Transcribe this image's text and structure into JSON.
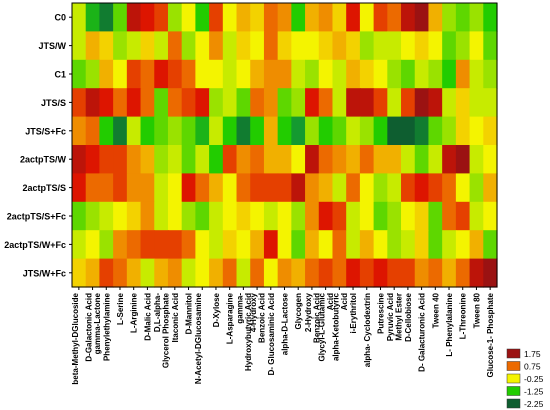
{
  "chart_data": {
    "type": "heatmap",
    "rows": [
      "C0",
      "JTS/W",
      "C1",
      "JTS/S",
      "JTS/S+Fc",
      "2actpTS/W",
      "2actpTS/S",
      "2actpTS/S+Fc",
      "2actpTS/W+Fc",
      "JTS/W+Fc"
    ],
    "columns": [
      "beta-Methyl-DGlucoside",
      "D-Galactonic Acid gamma-Lactone",
      "Phenylethylamine",
      "L-Serine",
      "L-Arginine",
      "D-Malic Acid",
      "D,L-alpha- Glycerol Phosphate",
      "Itaconic Acid",
      "D-Mannitol",
      "N-Acetyl-DGlucosamine",
      "D-Xylose",
      "L-Asparagine",
      "gamma- Hydroxybutyric Acid",
      "4-Hydroxy Benzoic Acid",
      "D- Glucosaminic Acid",
      "alpha-D-Lactose",
      "Glycogen",
      "2-Hydroxy Benzoic Acid",
      "Glycyl-L-Glutamic Acid",
      "alpha-Ketobutyric Acid",
      "i-Erythritol",
      "alpha- Cyclodextrin",
      "Putrescine",
      "Pyruvic Acid Methyl Ester",
      "D-Cellobiose",
      "D- Galacturonic Acid",
      "Tween 40",
      "L- Phenylalanine",
      "L-Threonine",
      "Tween 80",
      "Glucose-1- Phosphate"
    ],
    "values": [
      [
        -0.5,
        -1.5,
        -2.0,
        -1.0,
        1.5,
        1.25,
        1.0,
        -0.75,
        -0.25,
        -1.25,
        1.0,
        -0.25,
        0.25,
        0.0,
        0.75,
        0.5,
        -1.25,
        0.25,
        0.5,
        0.0,
        1.25,
        -0.25,
        1.0,
        0.75,
        1.5,
        1.75,
        0.25,
        -0.75,
        -1.0,
        -0.75,
        -1.25
      ],
      [
        -0.5,
        0.25,
        0.0,
        -0.75,
        -0.5,
        0.0,
        -0.5,
        0.75,
        -0.75,
        -0.25,
        0.5,
        -0.5,
        0.0,
        -0.25,
        0.75,
        0.0,
        -0.25,
        -0.25,
        0.0,
        0.25,
        0.0,
        -0.75,
        -0.5,
        -0.5,
        -0.25,
        0.0,
        -0.25,
        -1.0,
        -0.75,
        -0.25,
        -1.0
      ],
      [
        -1.0,
        -0.75,
        0.25,
        -0.25,
        1.0,
        0.75,
        1.25,
        1.0,
        0.75,
        -0.25,
        -0.25,
        -0.5,
        -0.25,
        0.25,
        0.5,
        0.5,
        -0.5,
        -0.75,
        -0.25,
        -0.5,
        0.25,
        0.0,
        -0.25,
        -0.75,
        -1.0,
        -0.5,
        -0.75,
        -1.25,
        0.5,
        -0.5,
        -0.75
      ],
      [
        1.0,
        1.5,
        1.25,
        0.75,
        1.25,
        0.75,
        -1.0,
        0.75,
        1.0,
        1.25,
        -0.75,
        -0.5,
        -1.0,
        0.75,
        0.5,
        -1.0,
        -0.75,
        1.25,
        0.75,
        -0.5,
        1.5,
        1.5,
        1.0,
        -0.5,
        1.0,
        1.75,
        1.5,
        -0.5,
        0.0,
        -0.5,
        -0.5
      ],
      [
        0.5,
        0.75,
        -1.25,
        -2.0,
        -0.5,
        -1.25,
        -1.0,
        -0.75,
        -1.0,
        -1.5,
        -0.5,
        -1.25,
        -2.0,
        -1.25,
        0.25,
        -1.25,
        -1.75,
        -0.75,
        -1.25,
        -1.0,
        -0.5,
        -0.75,
        -1.25,
        -2.25,
        -2.25,
        -2.0,
        -1.0,
        -0.75,
        0.0,
        -0.25,
        0.0
      ],
      [
        1.5,
        1.25,
        1.0,
        1.0,
        0.5,
        0.25,
        -0.75,
        -0.5,
        -1.0,
        -0.5,
        -1.25,
        1.0,
        0.5,
        0.75,
        0.25,
        0.25,
        -0.25,
        1.5,
        0.75,
        0.5,
        0.25,
        0.75,
        0.25,
        0.25,
        -0.5,
        -1.0,
        -0.5,
        1.5,
        1.75,
        -0.5,
        -0.25
      ],
      [
        1.25,
        0.75,
        0.75,
        1.0,
        0.5,
        0.5,
        -0.5,
        -0.25,
        1.25,
        0.75,
        0.25,
        -0.25,
        0.75,
        1.0,
        1.0,
        1.0,
        1.5,
        0.5,
        0.25,
        -0.5,
        0.75,
        -0.25,
        -0.75,
        -0.5,
        1.0,
        1.25,
        1.0,
        0.75,
        -0.25,
        -0.75,
        0.25
      ],
      [
        -1.0,
        -0.75,
        -0.5,
        -0.25,
        0.0,
        0.5,
        -0.5,
        -0.25,
        -0.75,
        -1.0,
        -0.5,
        -0.25,
        0.0,
        -0.25,
        -0.5,
        -0.25,
        -0.75,
        0.5,
        1.25,
        1.0,
        -0.5,
        -0.25,
        -1.0,
        -0.75,
        -0.25,
        0.0,
        -1.0,
        0.75,
        1.0,
        -0.5,
        -0.25
      ],
      [
        -0.5,
        -0.25,
        -0.75,
        0.5,
        0.75,
        1.0,
        1.0,
        1.0,
        0.75,
        -0.25,
        -0.5,
        0.0,
        -0.25,
        0.25,
        1.25,
        -0.25,
        -1.0,
        0.25,
        -0.25,
        0.75,
        -0.5,
        0.25,
        -0.25,
        -0.75,
        -0.5,
        0.0,
        -1.0,
        -0.5,
        -0.25,
        0.25,
        -1.0
      ],
      [
        0.0,
        0.25,
        1.0,
        0.75,
        0.25,
        -0.5,
        0.25,
        0.5,
        -0.5,
        -0.25,
        0.25,
        0.75,
        -0.5,
        0.75,
        -0.25,
        0.5,
        0.25,
        0.75,
        1.0,
        0.75,
        1.25,
        1.0,
        1.25,
        1.0,
        1.0,
        0.5,
        0.75,
        0.25,
        0.75,
        1.5,
        1.75
      ]
    ],
    "legend": {
      "placement": "bottom-right",
      "items": [
        {
          "label": "1.75",
          "color": "#9b1212"
        },
        {
          "label": "0.75",
          "color": "#ec6a00"
        },
        {
          "label": "-0.25",
          "color": "#f4f400"
        },
        {
          "label": "-1.25",
          "color": "#22cc00"
        },
        {
          "label": "-2.25",
          "color": "#0e5e30"
        }
      ]
    },
    "color_stops": [
      {
        "value": 1.75,
        "color": "#9b1212"
      },
      {
        "value": 1.25,
        "color": "#dd1500"
      },
      {
        "value": 0.75,
        "color": "#ec6a00"
      },
      {
        "value": 0.25,
        "color": "#f1b000"
      },
      {
        "value": -0.25,
        "color": "#f4f400"
      },
      {
        "value": -0.75,
        "color": "#9ae200"
      },
      {
        "value": -1.25,
        "color": "#22cc00"
      },
      {
        "value": -1.75,
        "color": "#149a30"
      },
      {
        "value": -2.25,
        "color": "#0e5e30"
      }
    ],
    "grid": false
  }
}
